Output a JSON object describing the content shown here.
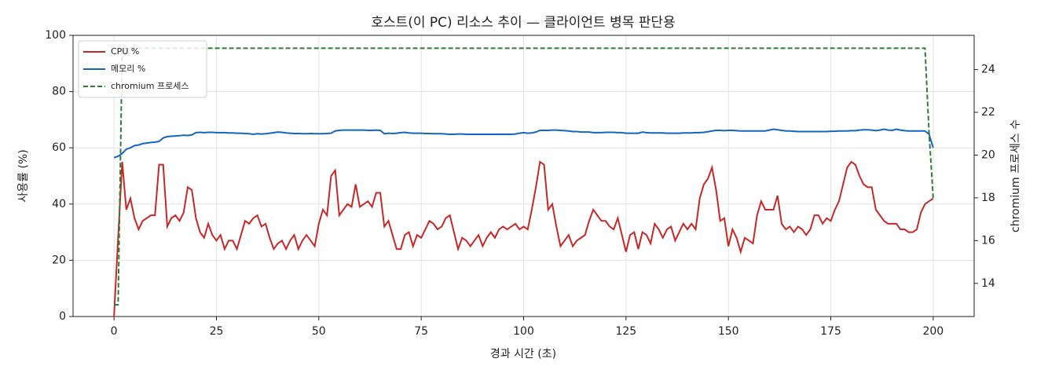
{
  "chart_data": {
    "type": "line",
    "title": "호스트(이 PC) 리소스 추이 — 클라이언트 병목 판단용",
    "xlabel": "경과 시간 (초)",
    "ylabel": "사용률 (%)",
    "y2label": "chromium 프로세스 수",
    "x": [
      0,
      1,
      2,
      3,
      4,
      5,
      6,
      7,
      8,
      9,
      10,
      11,
      12,
      13,
      14,
      15,
      16,
      17,
      18,
      19,
      20,
      21,
      22,
      23,
      24,
      25,
      26,
      27,
      28,
      29,
      30,
      31,
      32,
      33,
      34,
      35,
      36,
      37,
      38,
      39,
      40,
      41,
      42,
      43,
      44,
      45,
      46,
      47,
      48,
      49,
      50,
      51,
      52,
      53,
      54,
      55,
      56,
      57,
      58,
      59,
      60,
      61,
      62,
      63,
      64,
      65,
      66,
      67,
      68,
      69,
      70,
      71,
      72,
      73,
      74,
      75,
      76,
      77,
      78,
      79,
      80,
      81,
      82,
      83,
      84,
      85,
      86,
      87,
      88,
      89,
      90,
      91,
      92,
      93,
      94,
      95,
      96,
      97,
      98,
      99,
      100,
      101,
      102,
      103,
      104,
      105,
      106,
      107,
      108,
      109,
      110,
      111,
      112,
      113,
      114,
      115,
      116,
      117,
      118,
      119,
      120,
      121,
      122,
      123,
      124,
      125,
      126,
      127,
      128,
      129,
      130,
      131,
      132,
      133,
      134,
      135,
      136,
      137,
      138,
      139,
      140,
      141,
      142,
      143,
      144,
      145,
      146,
      147,
      148,
      149,
      150,
      151,
      152,
      153,
      154,
      155,
      156,
      157,
      158,
      159,
      160,
      161,
      162,
      163,
      164,
      165,
      166,
      167,
      168,
      169,
      170,
      171,
      172,
      173,
      174,
      175,
      176,
      177,
      178,
      179,
      180,
      181,
      182,
      183,
      184,
      185,
      186,
      187,
      188,
      189,
      190,
      191,
      192,
      193,
      194,
      195,
      196,
      197,
      198,
      199,
      200
    ],
    "series": [
      {
        "name": "CPU %",
        "color": "#c62828",
        "values": [
          0,
          28,
          55,
          38,
          42,
          35,
          31,
          34,
          35,
          36,
          36,
          54,
          54,
          32,
          35,
          36,
          34,
          37,
          46,
          45,
          35,
          30,
          28,
          33,
          29,
          27,
          29,
          24,
          27,
          27,
          24,
          29,
          34,
          33,
          35,
          36,
          32,
          33,
          28,
          24,
          26,
          27,
          24,
          27,
          29,
          24,
          27,
          29,
          27,
          25,
          33,
          38,
          36,
          50,
          52,
          36,
          38,
          40,
          39,
          47,
          39,
          40,
          41,
          39,
          44,
          44,
          32,
          34,
          29,
          24,
          24,
          29,
          30,
          25,
          29,
          28,
          31,
          34,
          33,
          31,
          32,
          35,
          36,
          30,
          24,
          28,
          27,
          25,
          27,
          29,
          25,
          28,
          30,
          28,
          31,
          32,
          31,
          32,
          33,
          31,
          32,
          31,
          38,
          46,
          55,
          54,
          38,
          40,
          32,
          25,
          27,
          29,
          25,
          27,
          28,
          29,
          34,
          38,
          36,
          34,
          34,
          32,
          31,
          35,
          29,
          23,
          29,
          30,
          24,
          30,
          29,
          26,
          33,
          31,
          28,
          31,
          32,
          27,
          30,
          33,
          31,
          33,
          31,
          42,
          47,
          49,
          53,
          45,
          34,
          35,
          25,
          31,
          28,
          23,
          28,
          27,
          26,
          36,
          41,
          38,
          38,
          38,
          43,
          33,
          31,
          32,
          30,
          32,
          31,
          29,
          31,
          36,
          36,
          33,
          35,
          34,
          38,
          41,
          47,
          53,
          55,
          54,
          50,
          47,
          46,
          46,
          38,
          36,
          34,
          33,
          33,
          33,
          31,
          31,
          30,
          30,
          31,
          37,
          40,
          41,
          42
        ]
      },
      {
        "name": "메모리 %",
        "color": "#1565c0",
        "values": [
          56.5,
          57,
          58,
          59.5,
          60,
          60.8,
          61,
          61.5,
          61.7,
          61.9,
          62,
          62.3,
          63.5,
          64,
          64.1,
          64.2,
          64.3,
          64.5,
          64.4,
          64.6,
          65.4,
          65.5,
          65.4,
          65.5,
          65.5,
          65.4,
          65.4,
          65.4,
          65.3,
          65.3,
          65.2,
          65.2,
          65.1,
          65,
          64.8,
          65,
          64.9,
          65,
          65.2,
          65.4,
          65.6,
          65.5,
          65.3,
          65.2,
          65.1,
          65.1,
          65,
          65,
          65.1,
          65,
          65,
          65,
          65.1,
          65.2,
          66,
          66.2,
          66.3,
          66.3,
          66.3,
          66.3,
          66.3,
          66.3,
          66.2,
          66.2,
          66.3,
          66.2,
          65,
          65.2,
          65.1,
          65.2,
          65.4,
          65.5,
          65.3,
          65.2,
          65.2,
          65.2,
          65.1,
          65.1,
          65,
          65,
          65,
          64.9,
          64.8,
          64.8,
          64.9,
          64.9,
          64.8,
          64.8,
          64.8,
          64.8,
          64.8,
          64.8,
          64.8,
          64.8,
          64.8,
          64.8,
          64.8,
          64.8,
          64.9,
          65.2,
          65.4,
          65.2,
          65.3,
          65.6,
          66.2,
          66.2,
          66.2,
          66.3,
          66.3,
          66.2,
          66.1,
          66,
          65.8,
          65.8,
          65.6,
          65.6,
          65.6,
          65.4,
          65.4,
          65.4,
          65.5,
          65.5,
          65.5,
          65.4,
          65.4,
          65.2,
          65.2,
          65.2,
          65.2,
          65.6,
          65.4,
          65.3,
          65.3,
          65.3,
          65.3,
          65.2,
          65.2,
          65.2,
          65.2,
          65.3,
          65.3,
          65.3,
          65.4,
          65.4,
          65.5,
          65.7,
          66,
          66.2,
          66.2,
          66.1,
          66.2,
          66.2,
          66.1,
          66,
          66,
          66,
          66,
          66,
          66,
          66,
          66.3,
          66.6,
          66.4,
          66.2,
          66,
          66,
          65.9,
          65.8,
          65.8,
          65.8,
          65.8,
          65.8,
          65.8,
          65.8,
          65.8,
          65.9,
          65.9,
          66,
          66,
          66,
          66.1,
          66.1,
          66.3,
          66.4,
          66.4,
          66.3,
          66.1,
          66.3,
          66.6,
          66.3,
          66.2,
          66.6,
          66.3,
          66.1,
          66,
          66,
          66,
          66,
          66,
          64.8,
          60
        ]
      },
      {
        "name": "chromium 프로세스",
        "color": "#2e7d32",
        "dashed": true,
        "axis": "y2",
        "x": [
          0,
          1,
          2,
          198,
          199,
          200
        ],
        "values": [
          13,
          13,
          25,
          25,
          21,
          18
        ]
      }
    ],
    "xlim": [
      -10,
      210
    ],
    "xticks": [
      0,
      25,
      50,
      75,
      100,
      125,
      150,
      175,
      200
    ],
    "ylim": [
      0,
      100
    ],
    "yticks": [
      0,
      20,
      40,
      60,
      80,
      100
    ],
    "y2lim": [
      12.45,
      25.6
    ],
    "y2ticks": [
      14,
      16,
      18,
      20,
      22,
      24
    ],
    "grid": true,
    "legend": "upper left"
  }
}
